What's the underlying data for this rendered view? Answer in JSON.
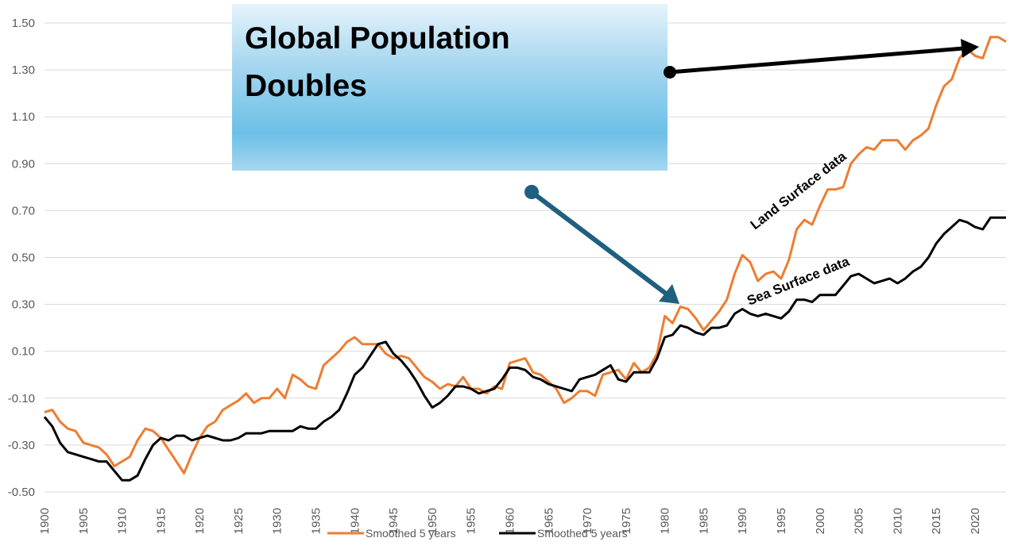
{
  "chart_data": {
    "type": "line",
    "title": "Global Population Doubles",
    "xlabel": "",
    "ylabel": "",
    "xlim": [
      1900,
      2024
    ],
    "ylim": [
      -0.5,
      1.5
    ],
    "y_ticks": [
      "1.50",
      "1.30",
      "1.10",
      "0.90",
      "0.70",
      "0.50",
      "0.30",
      "0.10",
      "-0.10",
      "-0.30",
      "-0.50"
    ],
    "y_tick_values": [
      1.5,
      1.3,
      1.1,
      0.9,
      0.7,
      0.5,
      0.3,
      0.1,
      -0.1,
      -0.3,
      -0.5
    ],
    "x_ticks": [
      1900,
      1905,
      1910,
      1915,
      1920,
      1925,
      1930,
      1935,
      1940,
      1945,
      1950,
      1955,
      1960,
      1965,
      1970,
      1975,
      1980,
      1985,
      1990,
      1995,
      2000,
      2005,
      2010,
      2015,
      2020
    ],
    "grid": "horizontal",
    "legend_position": "bottom",
    "series": [
      {
        "name": "Smoothed 5 years",
        "color": "#ED7D31",
        "x": [
          1900,
          1901,
          1902,
          1903,
          1904,
          1905,
          1906,
          1907,
          1908,
          1909,
          1910,
          1911,
          1912,
          1913,
          1914,
          1915,
          1916,
          1917,
          1918,
          1919,
          1920,
          1921,
          1922,
          1923,
          1924,
          1925,
          1926,
          1927,
          1928,
          1929,
          1930,
          1931,
          1932,
          1933,
          1934,
          1935,
          1936,
          1937,
          1938,
          1939,
          1940,
          1941,
          1942,
          1943,
          1944,
          1945,
          1946,
          1947,
          1948,
          1949,
          1950,
          1951,
          1952,
          1953,
          1954,
          1955,
          1956,
          1957,
          1958,
          1959,
          1960,
          1961,
          1962,
          1963,
          1964,
          1965,
          1966,
          1967,
          1968,
          1969,
          1970,
          1971,
          1972,
          1973,
          1974,
          1975,
          1976,
          1977,
          1978,
          1979,
          1980,
          1981,
          1982,
          1983,
          1984,
          1985,
          1986,
          1987,
          1988,
          1989,
          1990,
          1991,
          1992,
          1993,
          1994,
          1995,
          1996,
          1997,
          1998,
          1999,
          2000,
          2001,
          2002,
          2003,
          2004,
          2005,
          2006,
          2007,
          2008,
          2009,
          2010,
          2011,
          2012,
          2013,
          2014,
          2015,
          2016,
          2017,
          2018,
          2019,
          2020,
          2021,
          2022,
          2023,
          2024
        ],
        "values": [
          -0.16,
          -0.15,
          -0.2,
          -0.23,
          -0.24,
          -0.29,
          -0.3,
          -0.31,
          -0.34,
          -0.39,
          -0.37,
          -0.35,
          -0.28,
          -0.23,
          -0.24,
          -0.27,
          -0.32,
          -0.37,
          -0.42,
          -0.34,
          -0.27,
          -0.22,
          -0.2,
          -0.15,
          -0.13,
          -0.11,
          -0.08,
          -0.12,
          -0.1,
          -0.1,
          -0.06,
          -0.1,
          0.0,
          -0.02,
          -0.05,
          -0.06,
          0.04,
          0.07,
          0.1,
          0.14,
          0.16,
          0.13,
          0.13,
          0.13,
          0.09,
          0.07,
          0.08,
          0.07,
          0.03,
          -0.01,
          -0.03,
          -0.06,
          -0.04,
          -0.05,
          -0.01,
          -0.06,
          -0.06,
          -0.08,
          -0.05,
          -0.06,
          0.05,
          0.06,
          0.07,
          0.01,
          0.0,
          -0.03,
          -0.06,
          -0.12,
          -0.1,
          -0.07,
          -0.07,
          -0.09,
          0.0,
          0.01,
          0.02,
          -0.02,
          0.05,
          0.01,
          0.03,
          0.09,
          0.25,
          0.22,
          0.29,
          0.28,
          0.24,
          0.19,
          0.23,
          0.27,
          0.32,
          0.43,
          0.51,
          0.48,
          0.4,
          0.43,
          0.44,
          0.41,
          0.49,
          0.62,
          0.66,
          0.64,
          0.72,
          0.79,
          0.79,
          0.8,
          0.9,
          0.94,
          0.97,
          0.96,
          1.0,
          1.0,
          1.0,
          0.96,
          1.0,
          1.02,
          1.05,
          1.15,
          1.23,
          1.26,
          1.35,
          1.39,
          1.36,
          1.35,
          1.44,
          1.44,
          1.42
        ]
      },
      {
        "name": "Smoothed 5 years",
        "color": "#000000",
        "x": [
          1900,
          1901,
          1902,
          1903,
          1904,
          1905,
          1906,
          1907,
          1908,
          1909,
          1910,
          1911,
          1912,
          1913,
          1914,
          1915,
          1916,
          1917,
          1918,
          1919,
          1920,
          1921,
          1922,
          1923,
          1924,
          1925,
          1926,
          1927,
          1928,
          1929,
          1930,
          1931,
          1932,
          1933,
          1934,
          1935,
          1936,
          1937,
          1938,
          1939,
          1940,
          1941,
          1942,
          1943,
          1944,
          1945,
          1946,
          1947,
          1948,
          1949,
          1950,
          1951,
          1952,
          1953,
          1954,
          1955,
          1956,
          1957,
          1958,
          1959,
          1960,
          1961,
          1962,
          1963,
          1964,
          1965,
          1966,
          1967,
          1968,
          1969,
          1970,
          1971,
          1972,
          1973,
          1974,
          1975,
          1976,
          1977,
          1978,
          1979,
          1980,
          1981,
          1982,
          1983,
          1984,
          1985,
          1986,
          1987,
          1988,
          1989,
          1990,
          1991,
          1992,
          1993,
          1994,
          1995,
          1996,
          1997,
          1998,
          1999,
          2000,
          2001,
          2002,
          2003,
          2004,
          2005,
          2006,
          2007,
          2008,
          2009,
          2010,
          2011,
          2012,
          2013,
          2014,
          2015,
          2016,
          2017,
          2018,
          2019,
          2020,
          2021,
          2022,
          2023,
          2024
        ],
        "values": [
          -0.18,
          -0.22,
          -0.29,
          -0.33,
          -0.34,
          -0.35,
          -0.36,
          -0.37,
          -0.37,
          -0.41,
          -0.45,
          -0.45,
          -0.43,
          -0.36,
          -0.3,
          -0.27,
          -0.28,
          -0.26,
          -0.26,
          -0.28,
          -0.27,
          -0.26,
          -0.27,
          -0.28,
          -0.28,
          -0.27,
          -0.25,
          -0.25,
          -0.25,
          -0.24,
          -0.24,
          -0.24,
          -0.24,
          -0.22,
          -0.23,
          -0.23,
          -0.2,
          -0.18,
          -0.15,
          -0.08,
          0.0,
          0.03,
          0.08,
          0.13,
          0.14,
          0.09,
          0.06,
          0.02,
          -0.03,
          -0.09,
          -0.14,
          -0.12,
          -0.09,
          -0.05,
          -0.05,
          -0.06,
          -0.08,
          -0.07,
          -0.06,
          -0.02,
          0.03,
          0.03,
          0.02,
          -0.01,
          -0.02,
          -0.04,
          -0.05,
          -0.06,
          -0.07,
          -0.02,
          -0.01,
          0.0,
          0.02,
          0.04,
          -0.02,
          -0.03,
          0.01,
          0.01,
          0.01,
          0.07,
          0.16,
          0.17,
          0.21,
          0.2,
          0.18,
          0.17,
          0.2,
          0.2,
          0.21,
          0.26,
          0.28,
          0.26,
          0.25,
          0.26,
          0.25,
          0.24,
          0.27,
          0.32,
          0.32,
          0.31,
          0.34,
          0.34,
          0.34,
          0.38,
          0.42,
          0.43,
          0.41,
          0.39,
          0.4,
          0.41,
          0.39,
          0.41,
          0.44,
          0.46,
          0.5,
          0.56,
          0.6,
          0.63,
          0.66,
          0.65,
          0.63,
          0.62,
          0.67,
          0.67,
          0.67
        ]
      }
    ]
  },
  "title_lines": [
    "Global Population",
    "Doubles"
  ],
  "annotations": {
    "land": "Land Surface data",
    "sea": "Sea Surface data"
  },
  "legend": [
    {
      "label": "Smoothed 5 years",
      "color": "#ED7D31"
    },
    {
      "label": "Smoothed 5 years",
      "color": "#000000"
    }
  ],
  "colors": {
    "arrow_teal": "#1F5F7F",
    "box_top": "#E4F2FA",
    "box_mid": "#6FC1E6",
    "grid": "#D9D9D9"
  }
}
